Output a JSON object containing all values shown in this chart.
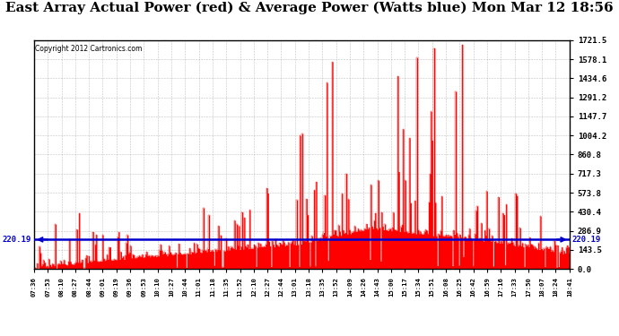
{
  "title": "East Array Actual Power (red) & Average Power (Watts blue) Mon Mar 12 18:56",
  "copyright": "Copyright 2012 Cartronics.com",
  "ymax": 1721.5,
  "ymin": 0.0,
  "yticks": [
    0.0,
    143.5,
    286.9,
    430.4,
    573.8,
    717.3,
    860.8,
    1004.2,
    1147.7,
    1291.2,
    1434.6,
    1578.1,
    1721.5
  ],
  "avg_power": 220.19,
  "avg_label": "220.19",
  "background_color": "#ffffff",
  "plot_bg_color": "#ffffff",
  "grid_color": "#888888",
  "fill_color": "#ff0000",
  "line_color": "#ff0000",
  "avg_line_color": "#0000cc",
  "title_fontsize": 11,
  "xtick_labels": [
    "07:36",
    "07:53",
    "08:10",
    "08:27",
    "08:44",
    "09:01",
    "09:19",
    "09:36",
    "09:53",
    "10:10",
    "10:27",
    "10:44",
    "11:01",
    "11:18",
    "11:35",
    "11:52",
    "12:10",
    "12:27",
    "12:44",
    "13:01",
    "13:18",
    "13:35",
    "13:52",
    "14:09",
    "14:26",
    "14:43",
    "15:00",
    "15:17",
    "15:34",
    "15:51",
    "16:08",
    "16:25",
    "16:42",
    "16:59",
    "17:16",
    "17:33",
    "17:50",
    "18:07",
    "18:24",
    "18:41"
  ]
}
